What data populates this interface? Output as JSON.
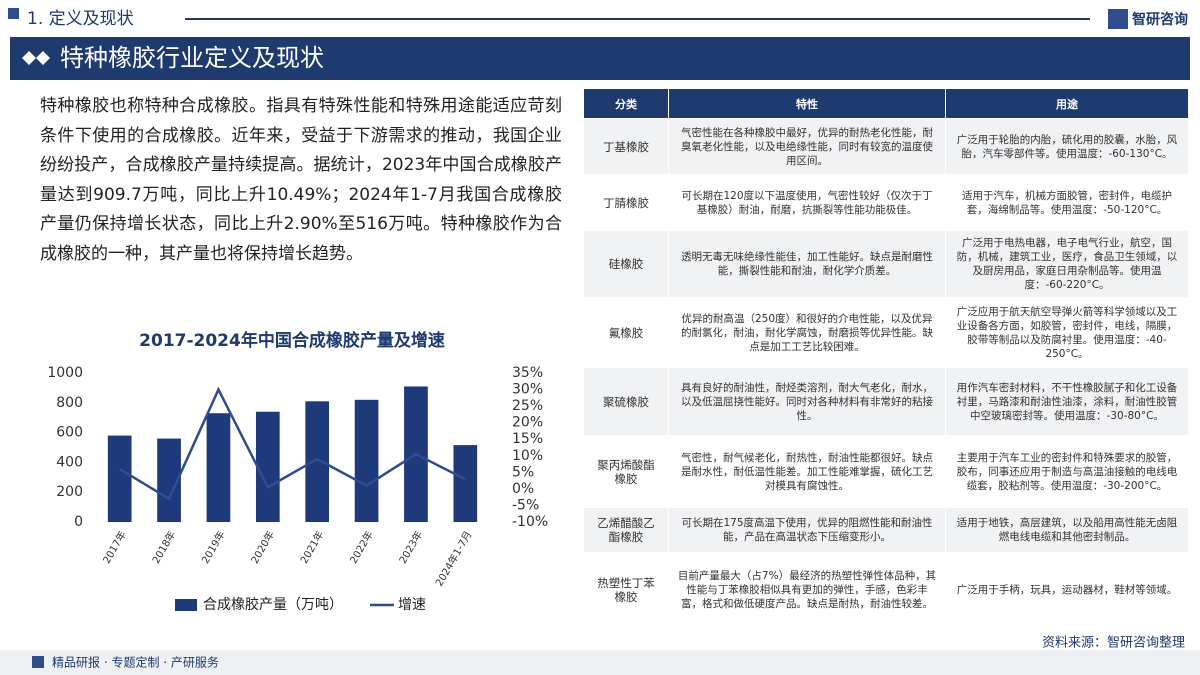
{
  "header": {
    "section": "1. 定义及现状",
    "logo": "智研咨询",
    "title": "特种橡胶行业定义及现状"
  },
  "paragraph": "特种橡胶也称特种合成橡胶。指具有特殊性能和特殊用途能适应苛刻条件下使用的合成橡胶。近年来，受益于下游需求的推动，我国企业纷纷投产，合成橡胶产量持续提高。据统计，2023年中国合成橡胶产量达到909.7万吨，同比上升10.49%；2024年1-7月我国合成橡胶产量仍保持增长状态，同比上升2.90%至516万吨。特种橡胶作为合成橡胶的一种，其产量也将保持增长趋势。",
  "chart_data": {
    "type": "bar-line",
    "title": "2017-2024年中国合成橡胶产量及增速",
    "categories": [
      "2017年",
      "2018年",
      "2019年",
      "2020年",
      "2021年",
      "2022年",
      "2023年",
      "2024年1-7月"
    ],
    "series": [
      {
        "name": "合成橡胶产量（万吨）",
        "color": "#1f3a7a",
        "type": "bar",
        "values": [
          580,
          560,
          730,
          740,
          810,
          820,
          909.7,
          516
        ]
      },
      {
        "name": "增速",
        "color": "#2e4d8c",
        "type": "line",
        "axis": "y2",
        "values": [
          6,
          -3,
          30,
          0.5,
          9,
          1,
          10.49,
          2.9
        ]
      }
    ],
    "ylim": [
      0,
      1000
    ],
    "yticks": [
      0,
      200,
      400,
      600,
      800,
      1000
    ],
    "y2lim": [
      -10,
      35
    ],
    "y2ticks": [
      {
        "value": -10,
        "label": "-10%"
      },
      {
        "value": -5,
        "label": "-5%"
      },
      {
        "value": 0,
        "label": "0%"
      },
      {
        "value": 5,
        "label": "5%"
      },
      {
        "value": 10,
        "label": "10%"
      },
      {
        "value": 15,
        "label": "15%"
      },
      {
        "value": 20,
        "label": "20%"
      },
      {
        "value": 25,
        "label": "25%"
      },
      {
        "value": 30,
        "label": "30%"
      },
      {
        "value": 35,
        "label": "35%"
      }
    ],
    "grid": false,
    "legend": "bottom"
  },
  "table": {
    "header": [
      "分类",
      "特性",
      "用途"
    ],
    "rows": [
      [
        "丁基橡胶",
        "气密性能在各种橡胶中最好，优异的耐热老化性能，耐臭氧老化性能，以及电绝缘性能，同时有较宽的温度使用区间。",
        "广泛用于轮胎的内胎，硫化用的胶囊，水胎，风胎，汽车零部件等。使用温度：-60-130°C。"
      ],
      [
        "丁腈橡胶",
        "可长期在120度以下温度使用，气密性较好（仅次于丁基橡胶）耐油，耐磨，抗撕裂等性能功能极佳。",
        "适用于汽车，机械方面胶管，密封件，电缆护套，海绵制品等。使用温度：-50-120°C。"
      ],
      [
        "硅橡胶",
        "透明无毒无味绝缘性能佳，加工性能好。缺点是耐磨性能，撕裂性能和耐油，耐化学介质差。",
        "广泛用于电热电器，电子电气行业，航空，国防，机械，建筑工业，医疗，食品卫生领域，以及厨房用品，家庭日用杂制品等。使用温度：-60-220°C。"
      ],
      [
        "氟橡胶",
        "优异的耐高温（250度）和很好的介电性能，以及优异的耐氯化，耐油，耐化学腐蚀，耐磨损等优异性能。缺点是加工工艺比较困难。",
        "广泛应用于航天航空导弹火箭等科学领域以及工业设备各方面，如胶管，密封件，电线，隔膜，胶带等制品以及防腐衬里。使用温度：-40-250°C。"
      ],
      [
        "聚硫橡胶",
        "具有良好的耐油性，耐烃类溶剂，耐大气老化，耐水，以及低温屈挠性能好。同时对各种材料有非常好的粘接性。",
        "用作汽车密封材料，不干性橡胶腻子和化工设备衬里，马路漆和耐油性油漆，涂料，耐油性胶管中空玻璃密封等。使用温度：-30-80°C。"
      ],
      [
        "聚丙烯酸酯橡胶",
        "气密性，耐气候老化，耐热性，耐油性能都很好。缺点是耐水性，耐低温性能差。加工性能难掌握，硫化工艺对模具有腐蚀性。",
        "主要用于汽车工业的密封件和特殊要求的胶管，胶布，同事还应用于制造与高温油接触的电线电缆套，胶粘剂等。使用温度：-30-200°C。"
      ],
      [
        "乙烯醋酸乙酯橡胶",
        "可长期在175度高温下使用，优异的阻燃性能和耐油性能，产品在高温状态下压缩变形小。",
        "适用于地铁，高层建筑，以及船用高性能无卤阻燃电线电缆和其他密封制品。"
      ],
      [
        "热塑性丁苯橡胶",
        "目前产量最大（占7%）最经济的热塑性弹性体品种，其性能与丁苯橡胶相似具有更加的弹性，手感，色彩丰富，格式和做低硬度产品。缺点是耐热，耐油性较差。",
        "广泛用于手柄，玩具，运动器材，鞋材等领域。"
      ]
    ]
  },
  "footer": {
    "source": "资料来源：智研咨询整理",
    "slogan": "精品研报 · 专题定制 · 产研服务"
  }
}
